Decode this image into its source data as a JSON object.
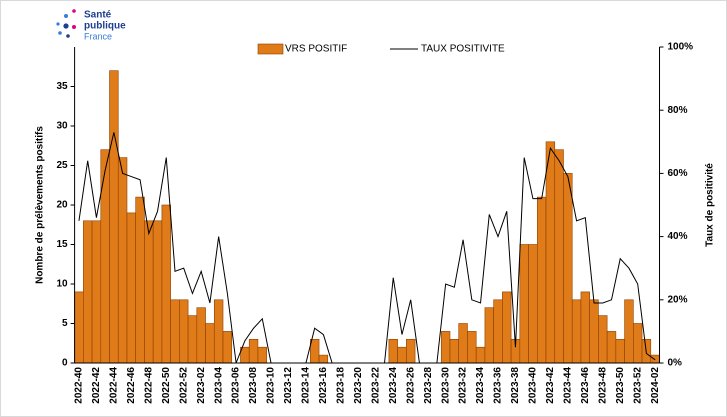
{
  "logo": {
    "line1": "Santé",
    "line2": "publique",
    "line3": "France"
  },
  "chart_data": {
    "type": "bar",
    "ylabel": "Nombre de prélèvements positifs",
    "y2label": "Taux de positivité",
    "categories": [
      "2022-40",
      null,
      "2022-42",
      null,
      "2022-44",
      null,
      "2022-46",
      null,
      "2022-48",
      null,
      "2022-50",
      null,
      "2022-52",
      null,
      "2023-02",
      null,
      "2023-04",
      null,
      "2023-06",
      null,
      "2023-08",
      null,
      "2023-10",
      null,
      "2023-12",
      null,
      "2023-14",
      null,
      "2023-16",
      null,
      "2023-18",
      null,
      "2023-20",
      null,
      "2023-22",
      null,
      "2023-24",
      null,
      "2023-26",
      null,
      "2023-28",
      null,
      "2023-30",
      null,
      "2023-32",
      null,
      "2023-34",
      null,
      "2023-36",
      null,
      "2023-38",
      null,
      "2023-40",
      null,
      "2023-42",
      null,
      "2023-44",
      null,
      "2023-46",
      null,
      "2023-48",
      null,
      "2023-50",
      null,
      "2023-52",
      null,
      "2024-02"
    ],
    "series": [
      {
        "name": "VRS POSITIF",
        "type": "bar",
        "color": "#e07b1a",
        "values": [
          9,
          18,
          18,
          27,
          37,
          26,
          19,
          21,
          18,
          18,
          20,
          8,
          8,
          6,
          7,
          5,
          8,
          4,
          0,
          2,
          3,
          2,
          0,
          0,
          0,
          0,
          0,
          3,
          1,
          0,
          0,
          0,
          0,
          0,
          0,
          0,
          3,
          2,
          3,
          0,
          0,
          0,
          4,
          3,
          5,
          4,
          2,
          7,
          8,
          9,
          3,
          15,
          15,
          21,
          28,
          27,
          24,
          8,
          9,
          8,
          6,
          4,
          3,
          8,
          5,
          3,
          1
        ]
      },
      {
        "name": "TAUX POSITIVITE",
        "type": "line",
        "color": "#000000",
        "axis": "y2",
        "values": [
          45,
          64,
          46,
          61,
          73,
          60,
          59,
          58,
          41,
          48,
          65,
          29,
          30,
          22,
          29,
          19,
          40,
          22,
          0,
          7,
          11,
          14,
          0,
          0,
          0,
          0,
          0,
          11,
          9,
          0,
          0,
          0,
          0,
          0,
          0,
          0,
          27,
          9,
          20,
          0,
          0,
          0,
          25,
          24,
          39,
          20,
          19,
          47,
          40,
          48,
          5,
          65,
          52,
          52,
          68,
          64,
          59,
          45,
          46,
          19,
          19,
          20,
          33,
          30,
          25,
          3,
          1
        ]
      }
    ],
    "ylim": [
      0,
      40
    ],
    "yticks": [
      0,
      5,
      10,
      15,
      20,
      25,
      30,
      35
    ],
    "y2lim": [
      0,
      100
    ],
    "y2ticks": [
      {
        "value": 0,
        "label": "0%"
      },
      {
        "value": 20,
        "label": "20%"
      },
      {
        "value": 40,
        "label": "40%"
      },
      {
        "value": 60,
        "label": "60%"
      },
      {
        "value": 80,
        "label": "80%"
      },
      {
        "value": 100,
        "label": "100%"
      }
    ],
    "legend": "top"
  }
}
